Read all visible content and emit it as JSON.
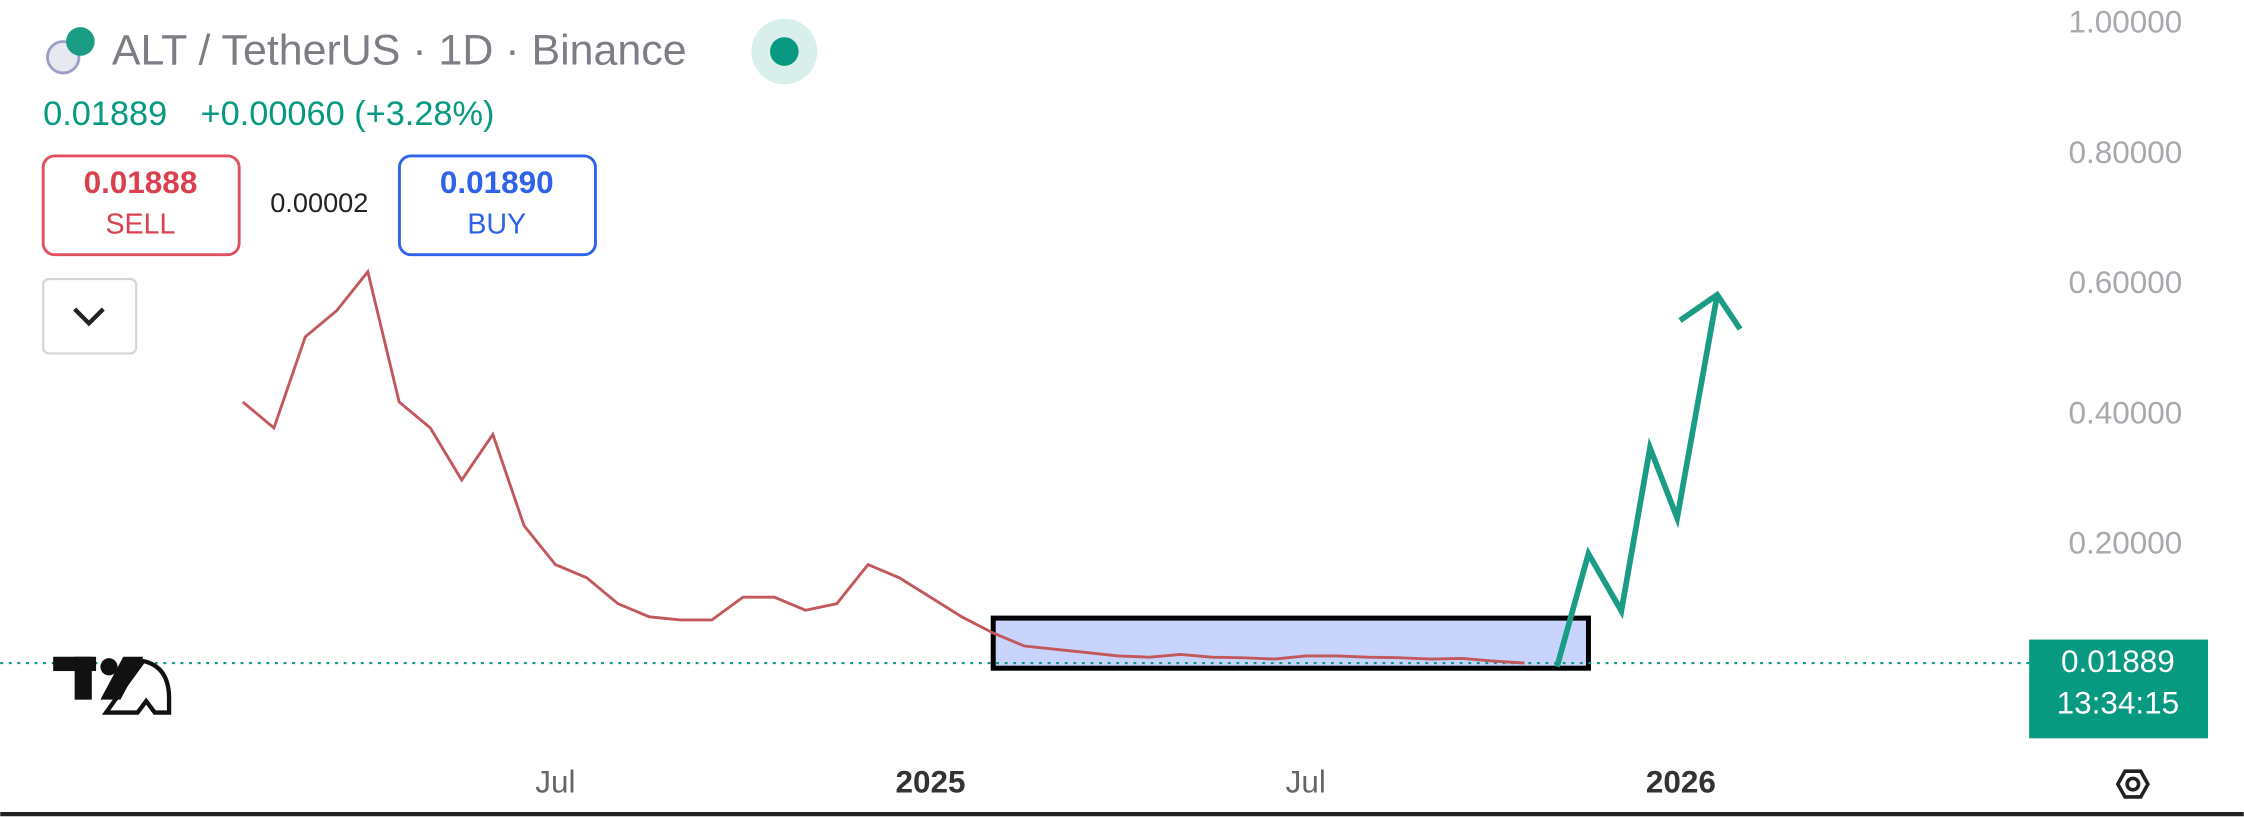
{
  "header": {
    "title": "ALT / TetherUS · 1D · Binance",
    "price": "0.01889",
    "change": "+0.00060 (+3.28%)"
  },
  "trade": {
    "sell_price": "0.01888",
    "sell_label": "SELL",
    "spread": "0.00002",
    "buy_price": "0.01890",
    "buy_label": "BUY"
  },
  "chart_data": {
    "type": "line",
    "categories": [
      null,
      null,
      null,
      null,
      null,
      null,
      null,
      null,
      null,
      null,
      "Jul",
      null,
      null,
      null,
      null,
      null,
      null,
      null,
      null,
      null,
      null,
      null,
      "2025",
      null,
      null,
      null,
      null,
      null,
      null,
      null,
      null,
      null,
      null,
      null,
      "Jul",
      null,
      null,
      null,
      null,
      null,
      null,
      null,
      null,
      null,
      null,
      null,
      "2026",
      null,
      null,
      null,
      null,
      null,
      null,
      null,
      null,
      null,
      null
    ],
    "series": [
      {
        "color": "#c2575c",
        "values": [
          0.42,
          0.38,
          0.52,
          0.56,
          0.62,
          0.42,
          0.38,
          0.3,
          0.37,
          0.23,
          0.17,
          0.15,
          0.11,
          0.09,
          0.085,
          0.085,
          0.12,
          0.12,
          0.1,
          0.11,
          0.17,
          0.15,
          0.12,
          0.09,
          0.065,
          0.045,
          0.04,
          0.035,
          0.03,
          0.028,
          0.032,
          0.028,
          0.027,
          0.025,
          0.03,
          0.03,
          0.028,
          0.027,
          0.025,
          0.026,
          0.022,
          0.019,
          null,
          null,
          null,
          null,
          null,
          null,
          null,
          null,
          null,
          null,
          null,
          null,
          null,
          null,
          null
        ]
      }
    ],
    "ylim": [
      0,
      1
    ],
    "yticks": [
      {
        "value": 0.2,
        "label": "0.20000"
      },
      {
        "value": 0.4,
        "label": "0.40000"
      },
      {
        "value": 0.6,
        "label": "0.60000"
      },
      {
        "value": 0.8,
        "label": "0.80000"
      },
      {
        "value": 1,
        "label": "1.00000"
      }
    ],
    "last_price": 0.01889,
    "countdown": "13:34:15"
  }
}
